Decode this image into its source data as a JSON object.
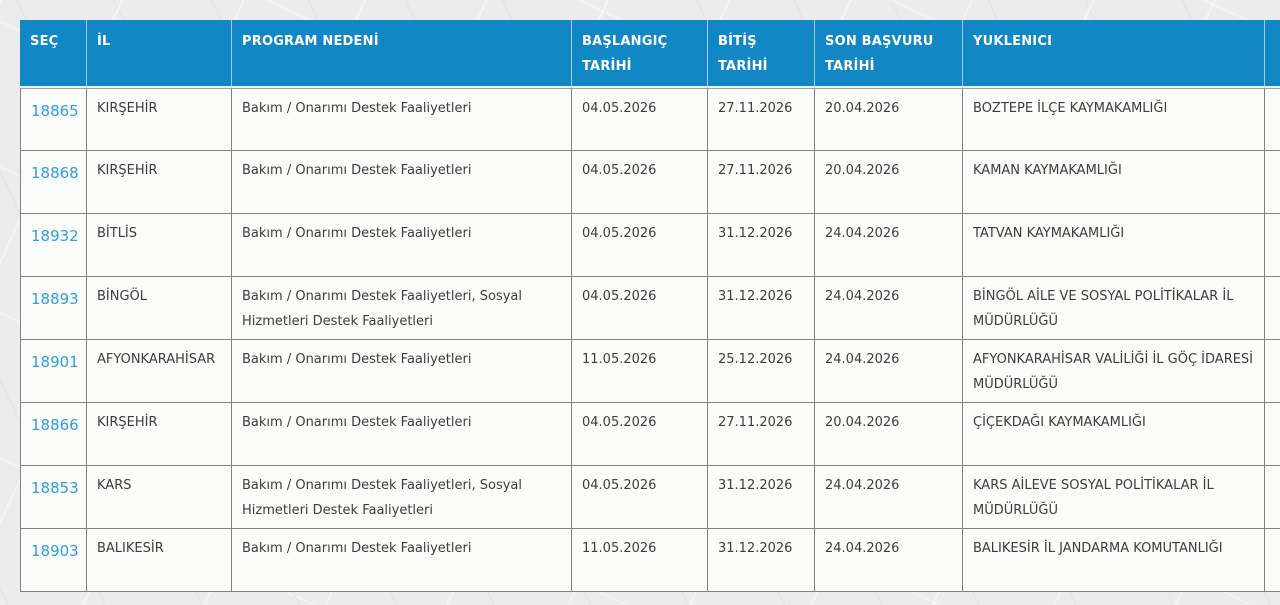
{
  "colors": {
    "header_bg": "#1287c6",
    "link_blue": "#2f9ede",
    "cell_border": "#828282",
    "page_bg": "#ebeceb"
  },
  "table": {
    "headers": [
      "SEÇ",
      "İL",
      "PROGRAM NEDENİ",
      "BAŞLANGIÇ TARİHİ",
      "BİTİŞ TARİHİ",
      "SON BAŞVURU TARİHİ",
      "YUKLENICI",
      ""
    ],
    "rows": [
      {
        "id": "18865",
        "il": "KIRŞEHİR",
        "program": "Bakım / Onarımı Destek Faaliyetleri",
        "baslangic": "04.05.2026",
        "bitis": "27.11.2026",
        "son_basvuru": "20.04.2026",
        "yuklenici": "BOZTEPE İLÇE KAYMAKAMLIĞI"
      },
      {
        "id": "18868",
        "il": "KIRŞEHİR",
        "program": "Bakım / Onarımı Destek Faaliyetleri",
        "baslangic": "04.05.2026",
        "bitis": "27.11.2026",
        "son_basvuru": "20.04.2026",
        "yuklenici": "KAMAN KAYMAKAMLIĞI"
      },
      {
        "id": "18932",
        "il": "BİTLİS",
        "program": "Bakım / Onarımı Destek Faaliyetleri",
        "baslangic": "04.05.2026",
        "bitis": "31.12.2026",
        "son_basvuru": "24.04.2026",
        "yuklenici": "TATVAN KAYMAKAMLIĞI"
      },
      {
        "id": "18893",
        "il": "BİNGÖL",
        "program": "Bakım / Onarımı Destek Faaliyetleri, Sosyal Hizmetleri Destek Faaliyetleri",
        "baslangic": "04.05.2026",
        "bitis": "31.12.2026",
        "son_basvuru": "24.04.2026",
        "yuklenici": "BİNGÖL AİLE VE SOSYAL POLİTİKALAR İL MÜDÜRLÜĞÜ"
      },
      {
        "id": "18901",
        "il": "AFYONKARAHİSAR",
        "program": "Bakım / Onarımı Destek Faaliyetleri",
        "baslangic": "11.05.2026",
        "bitis": "25.12.2026",
        "son_basvuru": "24.04.2026",
        "yuklenici": "AFYONKARAHİSAR VALİLİĞİ İL GÖÇ İDARESİ MÜDÜRLÜĞÜ"
      },
      {
        "id": "18866",
        "il": "KIRŞEHİR",
        "program": "Bakım / Onarımı Destek Faaliyetleri",
        "baslangic": "04.05.2026",
        "bitis": "27.11.2026",
        "son_basvuru": "20.04.2026",
        "yuklenici": "ÇİÇEKDAĞI KAYMAKAMLIĞI"
      },
      {
        "id": "18853",
        "il": "KARS",
        "program": "Bakım / Onarımı Destek Faaliyetleri, Sosyal Hizmetleri Destek Faaliyetleri",
        "baslangic": "04.05.2026",
        "bitis": "31.12.2026",
        "son_basvuru": "24.04.2026",
        "yuklenici": "KARS AİLEVE SOSYAL POLİTİKALAR İL MÜDÜRLÜĞÜ"
      },
      {
        "id": "18903",
        "il": "BALIKESİR",
        "program": "Bakım / Onarımı Destek Faaliyetleri",
        "baslangic": "11.05.2026",
        "bitis": "31.12.2026",
        "son_basvuru": "24.04.2026",
        "yuklenici": "BALIKESİR İL JANDARMA KOMUTANLIĞI"
      }
    ]
  }
}
